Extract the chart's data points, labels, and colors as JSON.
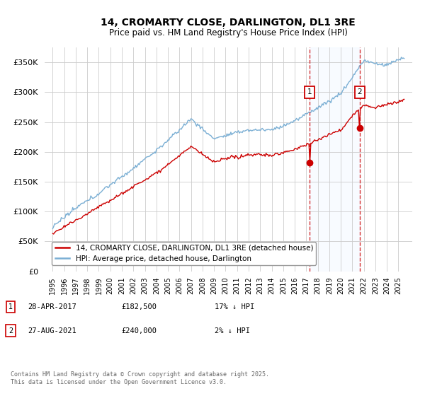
{
  "title": "14, CROMARTY CLOSE, DARLINGTON, DL1 3RE",
  "subtitle": "Price paid vs. HM Land Registry's House Price Index (HPI)",
  "legend_line1": "14, CROMARTY CLOSE, DARLINGTON, DL1 3RE (detached house)",
  "legend_line2": "HPI: Average price, detached house, Darlington",
  "sale1_date": "28-APR-2017",
  "sale1_price": "£182,500",
  "sale1_hpi": "17% ↓ HPI",
  "sale1_year": 2017.3,
  "sale1_value": 182500,
  "sale2_date": "27-AUG-2021",
  "sale2_price": "£240,000",
  "sale2_hpi": "2% ↓ HPI",
  "sale2_year": 2021.65,
  "sale2_value": 240000,
  "hpi_color": "#7bafd4",
  "price_color": "#cc0000",
  "vline_color": "#cc0000",
  "span_color": "#ddeeff",
  "ylim": [
    0,
    375000
  ],
  "yticks": [
    0,
    50000,
    100000,
    150000,
    200000,
    250000,
    300000,
    350000
  ],
  "footnote": "Contains HM Land Registry data © Crown copyright and database right 2025.\nThis data is licensed under the Open Government Licence v3.0."
}
